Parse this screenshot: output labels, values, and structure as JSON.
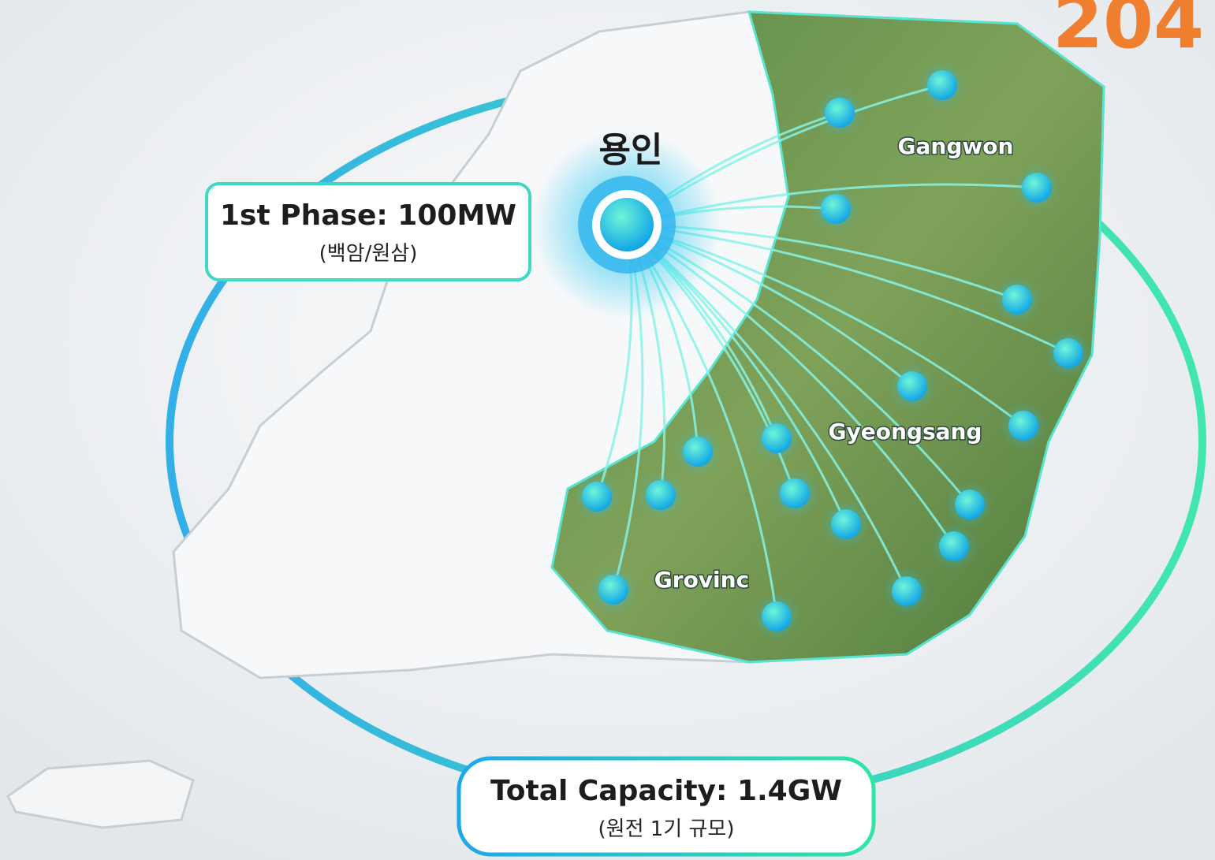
{
  "header": {
    "corner_number": "204"
  },
  "labels": {
    "hub": "용인",
    "gangwon": "Gangwon",
    "gyeongsang": "Gyeongsang",
    "province": "Grovinc"
  },
  "callouts": {
    "phase1": {
      "title": "1st Phase: 100MW",
      "subtitle": "(백암/원삼)"
    },
    "total": {
      "title": "Total Capacity: 1.4GW",
      "subtitle": "(원전 1기 규모)"
    }
  }
}
